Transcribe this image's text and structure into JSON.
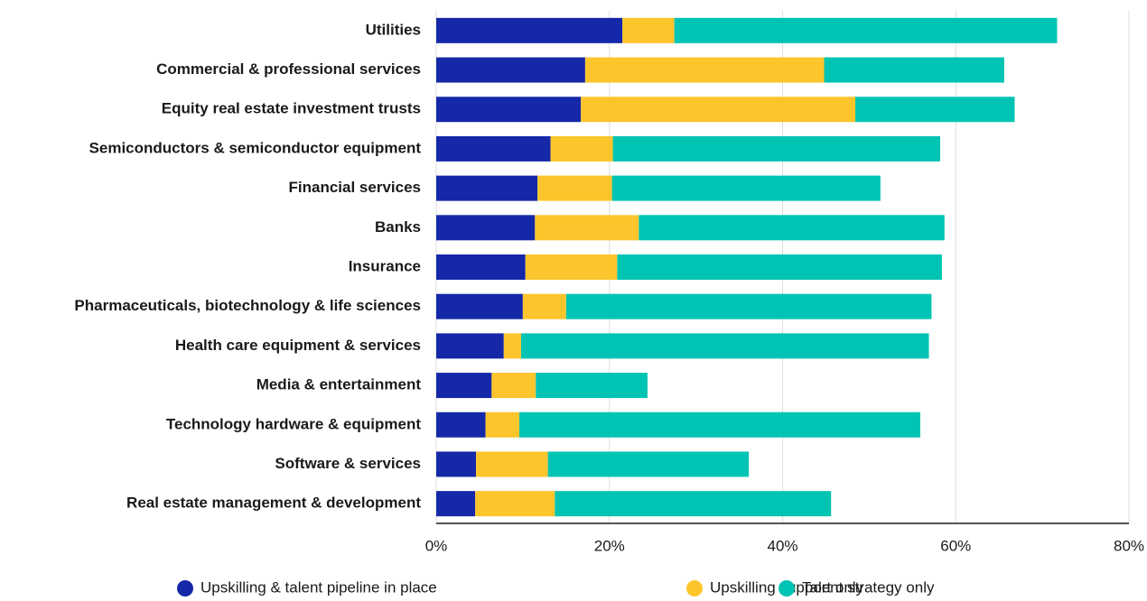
{
  "chart_data": {
    "type": "stacked_bar_horizontal",
    "categories": [
      "Utilities",
      "Commercial & professional services",
      "Equity real estate investment trusts",
      "Semiconductors & semiconductor equipment",
      "Financial services",
      "Banks",
      "Insurance",
      "Pharmaceuticals, biotechnology & life sciences",
      "Health care equipment & services",
      "Media & entertainment",
      "Technology hardware & equipment",
      "Software & services",
      "Real estate management & development"
    ],
    "series": [
      {
        "name": "Upskilling & talent pipeline in place",
        "color": "#1428a8",
        "values": [
          21.5,
          17.2,
          16.7,
          13.2,
          11.7,
          11.4,
          10.3,
          10.0,
          7.8,
          6.4,
          5.7,
          4.6,
          4.5
        ]
      },
      {
        "name": "Upskilling support only",
        "color": "#fcc52c",
        "values": [
          6.0,
          27.6,
          31.7,
          7.2,
          8.6,
          12.0,
          10.6,
          5.0,
          2.0,
          5.1,
          3.9,
          8.3,
          9.2
        ]
      },
      {
        "name": "Talent strategy only",
        "color": "#00c4b3",
        "values": [
          44.2,
          20.8,
          18.4,
          37.8,
          31.0,
          35.3,
          37.5,
          42.2,
          47.1,
          12.9,
          46.3,
          23.2,
          31.9
        ]
      }
    ],
    "xlim": [
      0,
      80
    ],
    "xticks": [
      {
        "value": 0,
        "label": "0%"
      },
      {
        "value": 20,
        "label": "20%"
      },
      {
        "value": 40,
        "label": "40%"
      },
      {
        "value": 60,
        "label": "60%"
      },
      {
        "value": 80,
        "label": "80%"
      }
    ],
    "grid": true,
    "legend": "bottom"
  }
}
